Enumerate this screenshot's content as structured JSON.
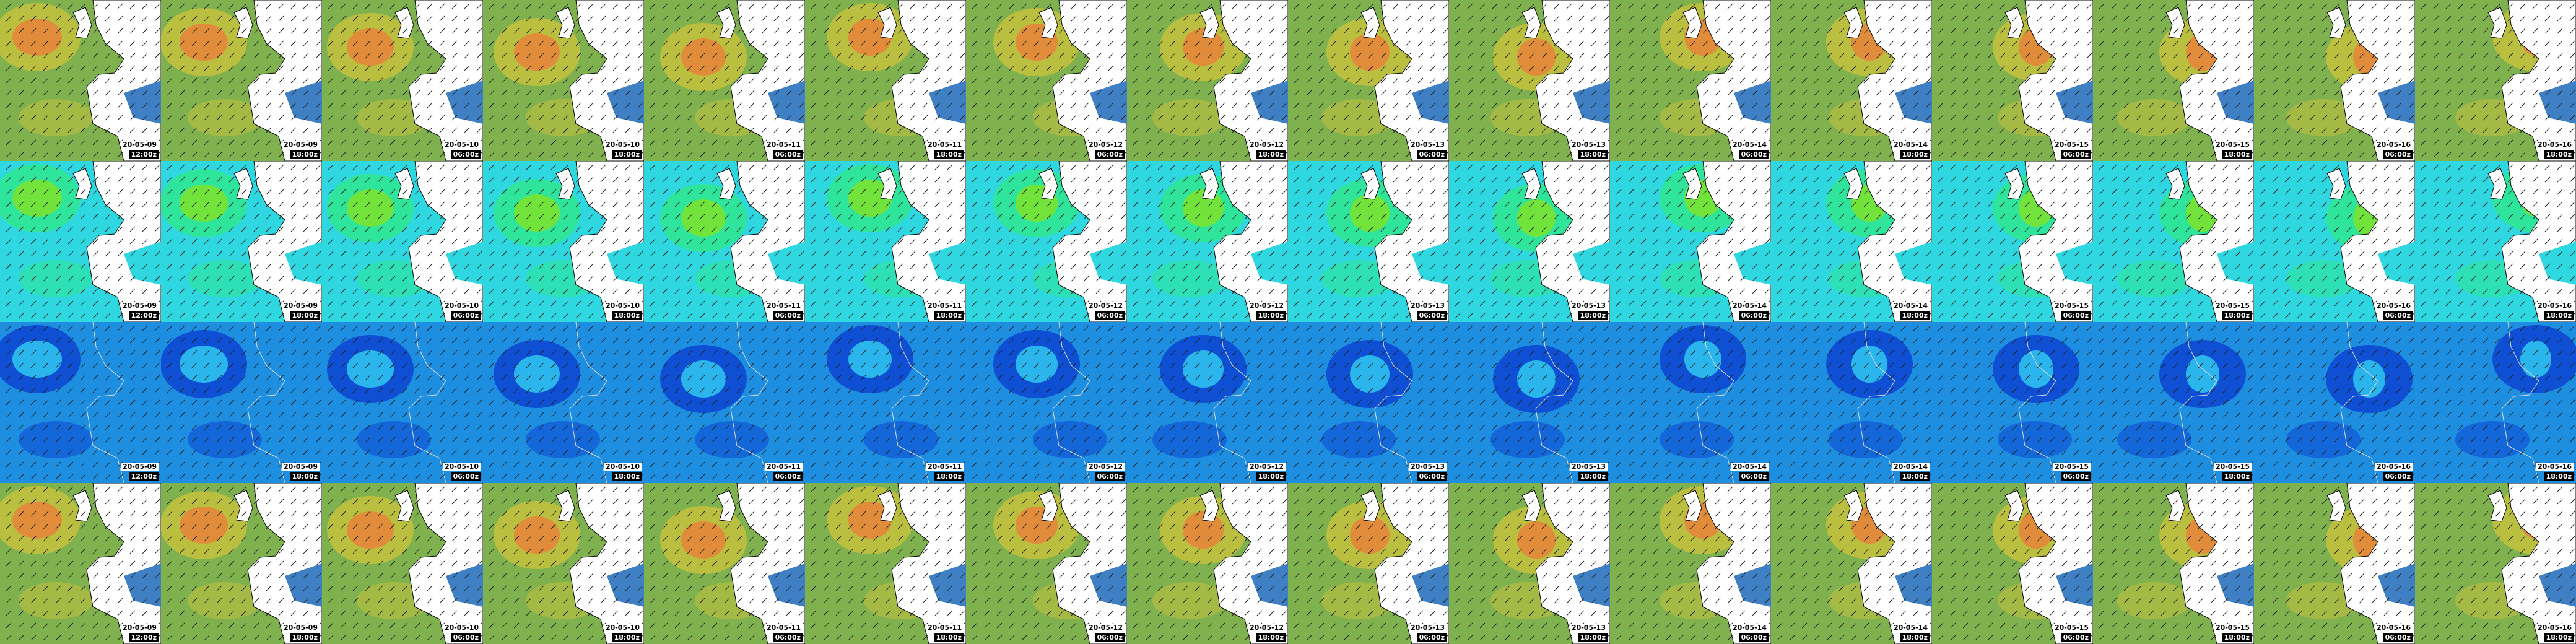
{
  "rows": [
    {
      "tiles": [
        {
          "date": "20-05-09",
          "time": "12:00z"
        },
        {
          "date": "20-05-09",
          "time": "18:00z"
        },
        {
          "date": "20-05-10",
          "time": "06:00z"
        },
        {
          "date": "20-05-10",
          "time": "18:00z"
        },
        {
          "date": "20-05-11",
          "time": "06:00z"
        },
        {
          "date": "20-05-11",
          "time": "18:00z"
        },
        {
          "date": "20-05-12",
          "time": "06:00z"
        },
        {
          "date": "20-05-12",
          "time": "18:00z"
        },
        {
          "date": "20-05-13",
          "time": "06:00z"
        },
        {
          "date": "20-05-13",
          "time": "18:00z"
        },
        {
          "date": "20-05-14",
          "time": "06:00z"
        },
        {
          "date": "20-05-14",
          "time": "18:00z"
        },
        {
          "date": "20-05-15",
          "time": "06:00z"
        },
        {
          "date": "20-05-15",
          "time": "18:00z"
        },
        {
          "date": "20-05-16",
          "time": "06:00z"
        },
        {
          "date": "20-05-16",
          "time": "18:00z"
        }
      ]
    },
    {
      "tiles": [
        {
          "date": "20-05-09",
          "time": "12:00z"
        },
        {
          "date": "20-05-09",
          "time": "18:00z"
        },
        {
          "date": "20-05-10",
          "time": "06:00z"
        },
        {
          "date": "20-05-10",
          "time": "18:00z"
        },
        {
          "date": "20-05-11",
          "time": "06:00z"
        },
        {
          "date": "20-05-11",
          "time": "18:00z"
        },
        {
          "date": "20-05-12",
          "time": "06:00z"
        },
        {
          "date": "20-05-12",
          "time": "18:00z"
        },
        {
          "date": "20-05-13",
          "time": "06:00z"
        },
        {
          "date": "20-05-13",
          "time": "18:00z"
        },
        {
          "date": "20-05-14",
          "time": "06:00z"
        },
        {
          "date": "20-05-14",
          "time": "18:00z"
        },
        {
          "date": "20-05-15",
          "time": "06:00z"
        },
        {
          "date": "20-05-15",
          "time": "18:00z"
        },
        {
          "date": "20-05-16",
          "time": "06:00z"
        },
        {
          "date": "20-05-16",
          "time": "18:00z"
        }
      ]
    },
    {
      "tiles": [
        {
          "date": "20-05-09",
          "time": "12:00z"
        },
        {
          "date": "20-05-09",
          "time": "18:00z"
        },
        {
          "date": "20-05-10",
          "time": "06:00z"
        },
        {
          "date": "20-05-10",
          "time": "18:00z"
        },
        {
          "date": "20-05-11",
          "time": "06:00z"
        },
        {
          "date": "20-05-11",
          "time": "18:00z"
        },
        {
          "date": "20-05-12",
          "time": "06:00z"
        },
        {
          "date": "20-05-12",
          "time": "18:00z"
        },
        {
          "date": "20-05-13",
          "time": "06:00z"
        },
        {
          "date": "20-05-13",
          "time": "18:00z"
        },
        {
          "date": "20-05-14",
          "time": "06:00z"
        },
        {
          "date": "20-05-14",
          "time": "18:00z"
        },
        {
          "date": "20-05-15",
          "time": "06:00z"
        },
        {
          "date": "20-05-15",
          "time": "18:00z"
        },
        {
          "date": "20-05-16",
          "time": "06:00z"
        },
        {
          "date": "20-05-16",
          "time": "18:00z"
        }
      ]
    },
    {
      "tiles": [
        {
          "date": "20-05-09",
          "time": "12:00z"
        },
        {
          "date": "20-05-09",
          "time": "18:00z"
        },
        {
          "date": "20-05-10",
          "time": "06:00z"
        },
        {
          "date": "20-05-10",
          "time": "18:00z"
        },
        {
          "date": "20-05-11",
          "time": "06:00z"
        },
        {
          "date": "20-05-11",
          "time": "18:00z"
        },
        {
          "date": "20-05-12",
          "time": "06:00z"
        },
        {
          "date": "20-05-12",
          "time": "18:00z"
        },
        {
          "date": "20-05-13",
          "time": "06:00z"
        },
        {
          "date": "20-05-13",
          "time": "18:00z"
        },
        {
          "date": "20-05-14",
          "time": "06:00z"
        },
        {
          "date": "20-05-14",
          "time": "18:00z"
        },
        {
          "date": "20-05-15",
          "time": "06:00z"
        },
        {
          "date": "20-05-15",
          "time": "18:00z"
        },
        {
          "date": "20-05-16",
          "time": "06:00z"
        },
        {
          "date": "20-05-16",
          "time": "18:00z"
        }
      ]
    }
  ]
}
